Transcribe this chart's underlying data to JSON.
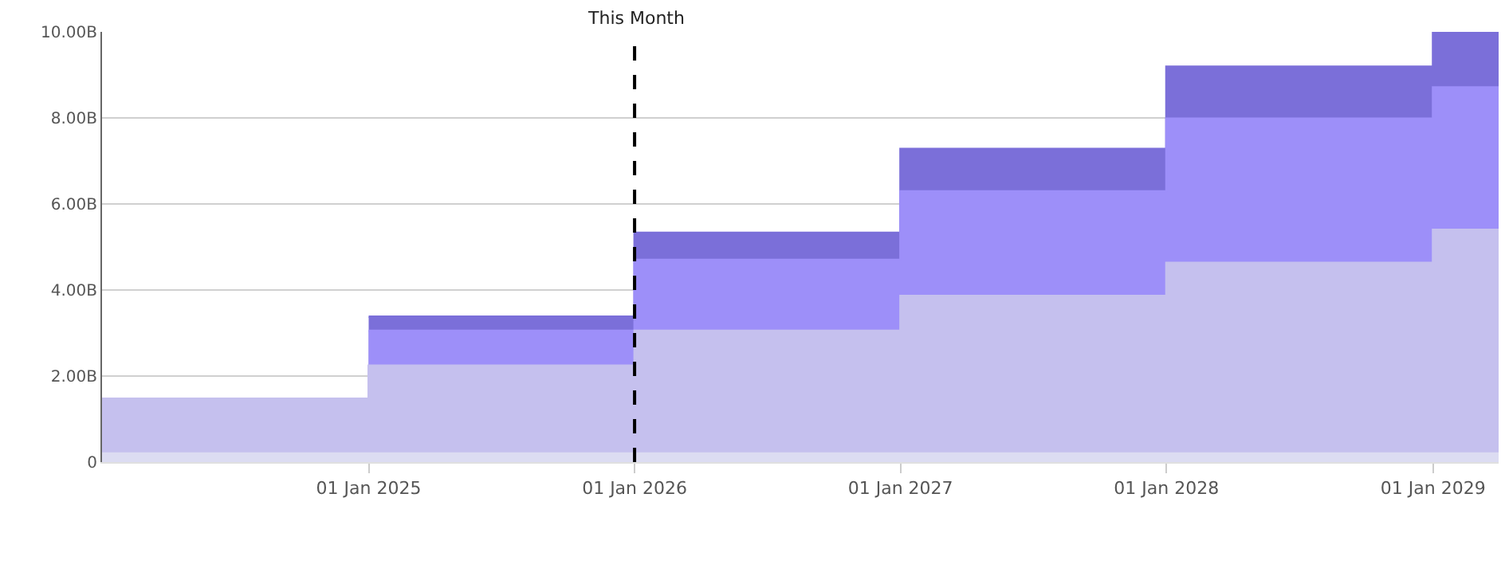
{
  "chart_data": {
    "type": "area",
    "x": [
      "2024-01-01",
      "2025-01-01",
      "2025-01-01",
      "2026-01-01",
      "2026-01-01",
      "2027-01-01",
      "2027-01-01",
      "2028-01-01",
      "2028-01-01",
      "2029-01-01",
      "2029-01-01",
      "2029-04-01"
    ],
    "series": [
      {
        "color": "#dcdcf2",
        "values": [
          0.2,
          0.2,
          0.2,
          0.2,
          0.2,
          0.2,
          0.2,
          0.2,
          0.2,
          0.2,
          0.2,
          0.2
        ]
      },
      {
        "color": "#c5c0ee",
        "values": [
          1.47,
          1.47,
          2.24,
          2.24,
          3.05,
          3.05,
          3.86,
          3.86,
          4.63,
          4.63,
          5.4,
          5.4
        ]
      },
      {
        "color": "#9d8ff9",
        "values": [
          null,
          null,
          3.05,
          3.05,
          4.7,
          4.7,
          6.29,
          6.29,
          7.98,
          7.98,
          8.71,
          8.71
        ]
      },
      {
        "color": "#7b6fd9",
        "values": [
          null,
          null,
          3.38,
          3.38,
          5.33,
          5.33,
          7.28,
          7.28,
          9.19,
          9.19,
          10,
          10
        ]
      }
    ],
    "xlim": [
      "2024-01-01",
      "2029-04-01"
    ],
    "xticks": [
      {
        "value": "2025-01-01",
        "label": "01 Jan 2025"
      },
      {
        "value": "2026-01-01",
        "label": "01 Jan 2026"
      },
      {
        "value": "2027-01-01",
        "label": "01 Jan 2027"
      },
      {
        "value": "2028-01-01",
        "label": "01 Jan 2028"
      },
      {
        "value": "2029-01-01",
        "label": "01 Jan 2029"
      }
    ],
    "ylim": [
      0,
      10
    ],
    "yticks": [
      0,
      {
        "value": 2,
        "label": "2.00B"
      },
      {
        "value": 4,
        "label": "4.00B"
      },
      {
        "value": 6,
        "label": "6.00B"
      },
      {
        "value": 8,
        "label": "8.00B"
      },
      {
        "value": 10,
        "label": "10.00B"
      }
    ],
    "grid": "y",
    "ref_lines": [
      {
        "axis": "x",
        "value": "2026-01-01",
        "label": "This Month",
        "color": "#000000",
        "line_style": "dashed"
      }
    ]
  }
}
